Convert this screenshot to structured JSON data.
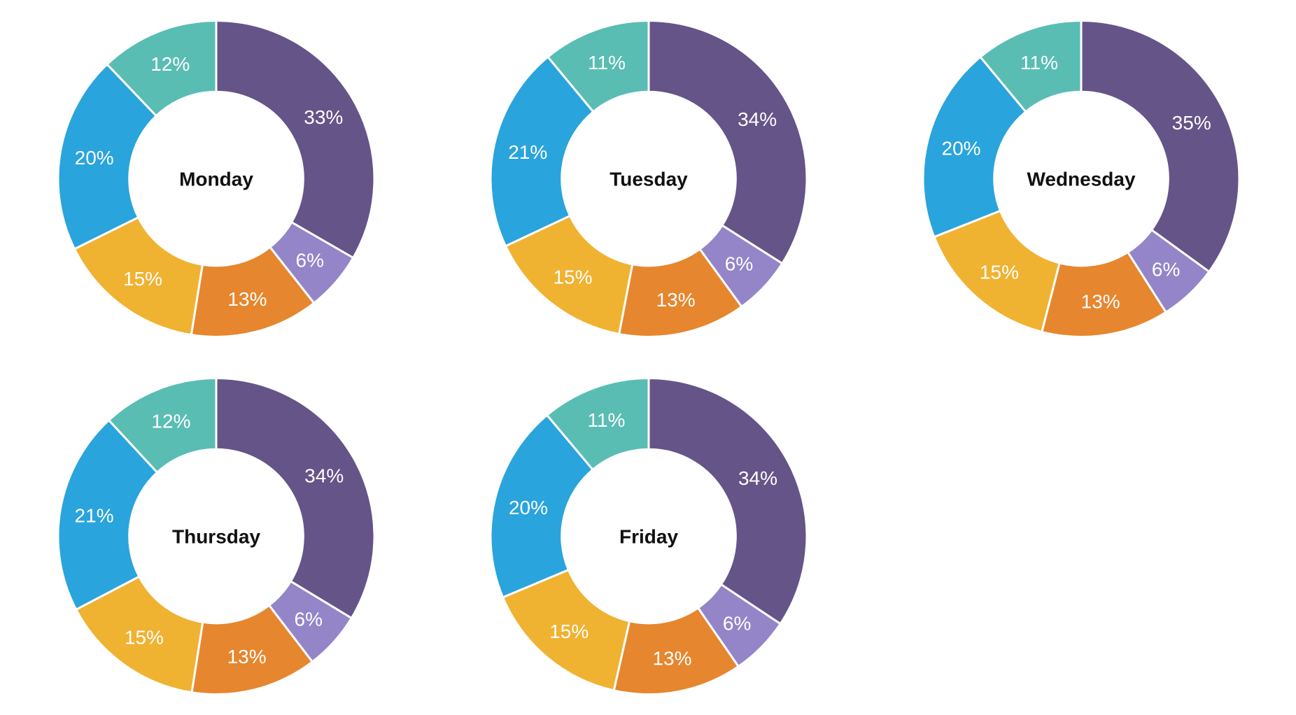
{
  "page": {
    "background_color": "#ffffff"
  },
  "palette": {
    "purple": "#655488",
    "light_purple": "#9385c8",
    "orange": "#e6862e",
    "amber": "#f0b231",
    "blue": "#29a4dc",
    "teal": "#59bdb4",
    "separator": "#ffffff",
    "title_color": "#111111",
    "label_color": "#ffffff"
  },
  "chart_data": [
    {
      "type": "pie",
      "subtype": "donut",
      "title": "Monday",
      "center_label": "Monday",
      "values": [
        33,
        6,
        13,
        15,
        20,
        12
      ],
      "labels": [
        "33%",
        "6%",
        "13%",
        "15%",
        "20%",
        "12%"
      ],
      "colors": [
        "#655488",
        "#9385c8",
        "#e6862e",
        "#f0b231",
        "#29a4dc",
        "#59bdb4"
      ],
      "start_angle_deg": 0,
      "direction": "clockwise",
      "donut_hole_ratio": 0.55,
      "legend": "none",
      "label_position": "inside-slices"
    },
    {
      "type": "pie",
      "subtype": "donut",
      "title": "Tuesday",
      "center_label": "Tuesday",
      "values": [
        34,
        6,
        13,
        15,
        21,
        11
      ],
      "labels": [
        "34%",
        "6%",
        "13%",
        "15%",
        "21%",
        "11%"
      ],
      "colors": [
        "#655488",
        "#9385c8",
        "#e6862e",
        "#f0b231",
        "#29a4dc",
        "#59bdb4"
      ],
      "start_angle_deg": 0,
      "direction": "clockwise",
      "donut_hole_ratio": 0.55,
      "legend": "none",
      "label_position": "inside-slices"
    },
    {
      "type": "pie",
      "subtype": "donut",
      "title": "Wednesday",
      "center_label": "Wednesday",
      "values": [
        35,
        6,
        13,
        15,
        20,
        11
      ],
      "labels": [
        "35%",
        "6%",
        "13%",
        "15%",
        "20%",
        "11%"
      ],
      "colors": [
        "#655488",
        "#9385c8",
        "#e6862e",
        "#f0b231",
        "#29a4dc",
        "#59bdb4"
      ],
      "start_angle_deg": 0,
      "direction": "clockwise",
      "donut_hole_ratio": 0.55,
      "legend": "none",
      "label_position": "inside-slices"
    },
    {
      "type": "pie",
      "subtype": "donut",
      "title": "Thursday",
      "center_label": "Thursday",
      "values": [
        34,
        6,
        13,
        15,
        21,
        12
      ],
      "labels": [
        "34%",
        "6%",
        "13%",
        "15%",
        "21%",
        "12%"
      ],
      "colors": [
        "#655488",
        "#9385c8",
        "#e6862e",
        "#f0b231",
        "#29a4dc",
        "#59bdb4"
      ],
      "start_angle_deg": 0,
      "direction": "clockwise",
      "donut_hole_ratio": 0.55,
      "legend": "none",
      "label_position": "inside-slices"
    },
    {
      "type": "pie",
      "subtype": "donut",
      "title": "Friday",
      "center_label": "Friday",
      "values": [
        34,
        6,
        13,
        15,
        20,
        11
      ],
      "labels": [
        "34%",
        "6%",
        "13%",
        "15%",
        "20%",
        "11%"
      ],
      "colors": [
        "#655488",
        "#9385c8",
        "#e6862e",
        "#f0b231",
        "#29a4dc",
        "#59bdb4"
      ],
      "start_angle_deg": 0,
      "direction": "clockwise",
      "donut_hole_ratio": 0.55,
      "legend": "none",
      "label_position": "inside-slices"
    }
  ]
}
